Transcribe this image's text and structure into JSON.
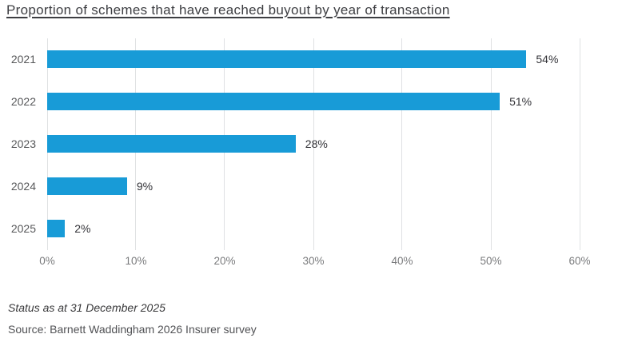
{
  "chart_data": {
    "type": "bar",
    "orientation": "horizontal",
    "title": "Proportion of schemes that have reached buyout by year of transaction",
    "categories": [
      "2021",
      "2022",
      "2023",
      "2024",
      "2025"
    ],
    "values": [
      54,
      51,
      28,
      9,
      2
    ],
    "value_labels": [
      "54%",
      "51%",
      "28%",
      "9%",
      "2%"
    ],
    "xlabel": "",
    "ylabel": "",
    "xlim": [
      0,
      60
    ],
    "xtick_values": [
      0,
      10,
      20,
      30,
      40,
      50,
      60
    ],
    "xtick_labels": [
      "0%",
      "10%",
      "20%",
      "30%",
      "40%",
      "50%",
      "60%"
    ],
    "grid": "vertical-gridlines-on",
    "legend": "none",
    "bar_color": "#189bd7",
    "gridline_color": "#dfe1e3"
  },
  "footer": {
    "status_note": "Status as at 31 December 2025",
    "source": "Source: Barnett Waddingham 2026 Insurer survey"
  },
  "colors": {
    "background": "#ffffff",
    "title_text": "#3d3e42",
    "category_text": "#57585a",
    "value_text": "#333338",
    "tick_text": "#7a7b7d"
  }
}
